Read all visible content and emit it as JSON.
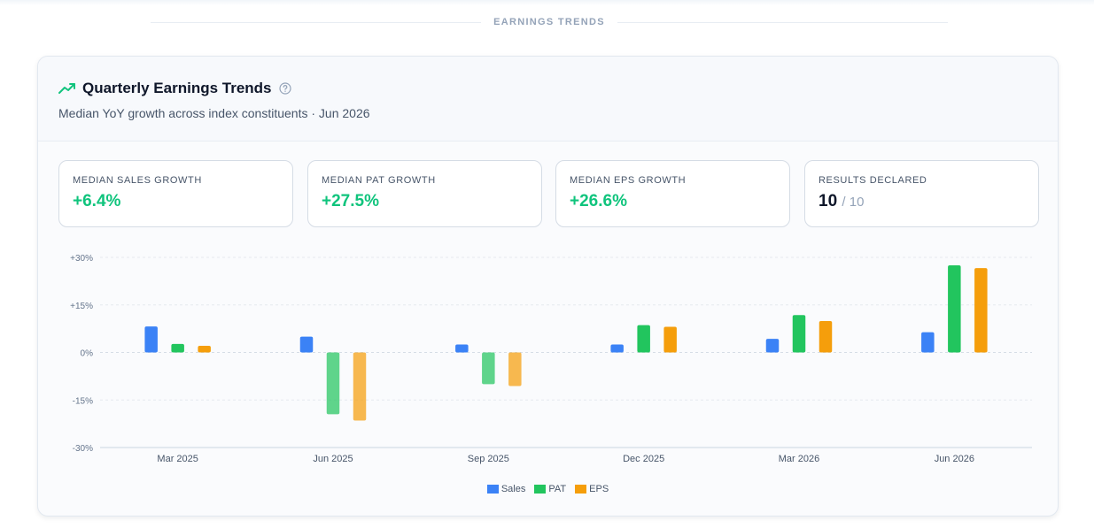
{
  "section": {
    "label": "EARNINGS TRENDS"
  },
  "card": {
    "title": "Quarterly Earnings Trends",
    "subtitle": "Median YoY growth across index constituents · Jun 2026"
  },
  "icons": {
    "trend": "trending-up-icon",
    "help": "help-circle-icon"
  },
  "kpis": [
    {
      "label": "MEDIAN SALES GROWTH",
      "value": "+6.4%"
    },
    {
      "label": "MEDIAN PAT GROWTH",
      "value": "+27.5%"
    },
    {
      "label": "MEDIAN EPS GROWTH",
      "value": "+26.6%"
    },
    {
      "label": "RESULTS DECLARED",
      "value": "10",
      "suffix": "/ 10"
    }
  ],
  "colors": {
    "sales": "#3b82f6",
    "pat": "#22c55e",
    "eps": "#f59e0b",
    "positive": "#10c47d"
  },
  "chart_data": {
    "type": "bar",
    "categories": [
      "Mar 2025",
      "Jun 2025",
      "Sep 2025",
      "Dec 2025",
      "Mar 2026",
      "Jun 2026"
    ],
    "series": [
      {
        "name": "Sales",
        "values": [
          8.2,
          5.0,
          2.5,
          2.5,
          4.3,
          6.4
        ]
      },
      {
        "name": "PAT",
        "values": [
          2.7,
          -19.5,
          -10.0,
          8.6,
          11.8,
          27.5
        ]
      },
      {
        "name": "EPS",
        "values": [
          2.1,
          -21.5,
          -10.6,
          8.1,
          9.9,
          26.6
        ]
      }
    ],
    "yticks": [
      30,
      15,
      0,
      -15,
      -30
    ],
    "ytick_labels": [
      "+30%",
      "+15%",
      "0%",
      "-15%",
      "-30%"
    ],
    "ylim": [
      -30,
      30
    ],
    "legend": "bottom",
    "grid": true
  }
}
